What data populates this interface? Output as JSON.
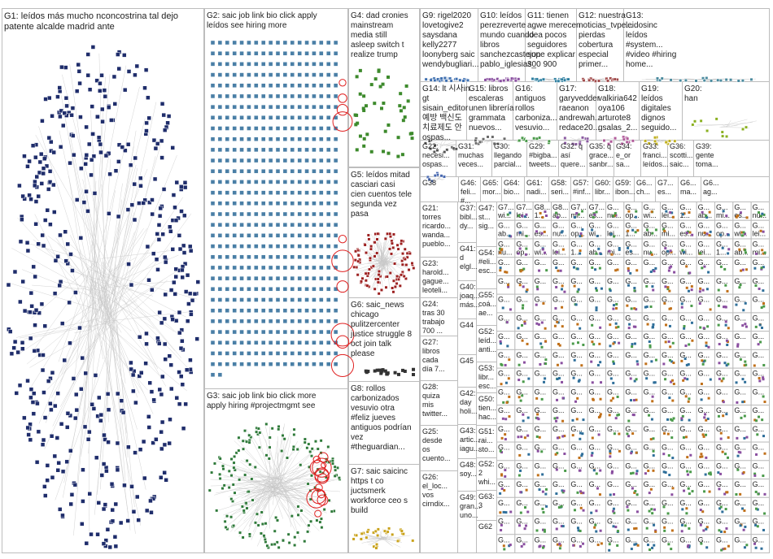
{
  "groups": [
    {
      "id": "G1",
      "lines": [
        "G1: leídos más mucho nconcostrina tal dejo",
        "patente alcalde madrid ante"
      ],
      "color": "#1f2d6b",
      "style": "ellipse",
      "n": 480
    },
    {
      "id": "G2",
      "lines": [
        "G2: saic job link bio click apply",
        "leídos see hiring more"
      ],
      "color": "#4a7fa6",
      "style": "grid",
      "n": 560
    },
    {
      "id": "G3",
      "lines": [
        "G3: saic job link bio click more",
        "apply hiring #projectmgmt see"
      ],
      "color": "#2f7a3a",
      "style": "ellipse",
      "n": 170
    },
    {
      "id": "G4",
      "lines": [
        "G4: dad cronies",
        "mainstream",
        "media still",
        "asleep switch t",
        "realize trump"
      ],
      "color": "#3d8a2c",
      "style": "scatter",
      "n": 45
    },
    {
      "id": "G5",
      "lines": [
        "G5: leídos mitad",
        "casciari casi",
        "cien cuentos tele",
        "segunda vez",
        "pasa"
      ],
      "color": "#9c2020",
      "style": "ellipse",
      "n": 110
    },
    {
      "id": "G6",
      "lines": [
        "G6: saic_news",
        "chicago",
        "pulitzercenter",
        "justice struggle 8",
        "oct join talk",
        "please"
      ],
      "color": "#333333",
      "style": "scatter",
      "n": 20
    },
    {
      "id": "G7",
      "lines": [
        "G7: saic saicinc",
        "https t co",
        "juctsmerk",
        "workforce ceo s",
        "build"
      ],
      "color": "#c9a21a",
      "style": "ellipse",
      "n": 30
    },
    {
      "id": "G8",
      "lines": [
        "G8: rollos",
        "carbonizados",
        "vesuvio otra",
        "#feliz jueves",
        "antiguos podrían",
        "vez",
        "#theguardian..."
      ],
      "color": "#777777",
      "style": "none",
      "n": 0
    },
    {
      "id": "G9",
      "lines": [
        "G9: rigel2020",
        "lovetogive2",
        "saysdana",
        "kelly2277",
        "loonyberg saic",
        "wendybugliari..."
      ],
      "color": "#3e6fb0",
      "style": "ellipse",
      "n": 25
    },
    {
      "id": "G10",
      "lines": [
        "G10: leídos",
        "perezreverte",
        "mundo cuando",
        "libros",
        "sanchezcastejon",
        "pablo_iglesias_"
      ],
      "color": "#8a4fa0",
      "style": "ellipse",
      "n": 25
    },
    {
      "id": "G11",
      "lines": [
        "G11: tienen",
        "agwe merecen",
        "idea pocos",
        "seguidores",
        "supe explicar",
        "300 900"
      ],
      "color": "#2e7fa0",
      "style": "ellipse",
      "n": 25
    },
    {
      "id": "G12",
      "lines": [
        "G12: nuestra",
        "noticias_tvpe...",
        "pierdas",
        "cobertura",
        "especial",
        "primer..."
      ],
      "color": "#a04a4a",
      "style": "ellipse",
      "n": 20
    },
    {
      "id": "G13",
      "lines": [
        "G13:",
        "leidosinc",
        "leídos",
        "#system...",
        "#video #hiring",
        "home..."
      ],
      "color": "#4a8a9e",
      "style": "ellipse",
      "n": 20
    },
    {
      "id": "G14",
      "lines": [
        "G14: lt 시사in",
        "gt",
        "sisain_editor",
        "예방 백신도",
        "치료제도 안",
        "ospas..."
      ],
      "color": "#555555",
      "style": "ellipse",
      "n": 12
    },
    {
      "id": "G15",
      "lines": [
        "G15: libros",
        "escaleras",
        "unen librería",
        "grammata",
        "nuevos..."
      ],
      "color": "#6a6a6a",
      "style": "ellipse",
      "n": 12
    },
    {
      "id": "G16",
      "lines": [
        "G16:",
        "antiguos",
        "rollos",
        "carboniza...",
        "vesuvio..."
      ],
      "color": "#4a9a4a",
      "style": "ellipse",
      "n": 12
    },
    {
      "id": "G17",
      "lines": [
        "G17:",
        "garyvedder",
        "raeanon",
        "andrewah...",
        "redace20..."
      ],
      "color": "#8a5aa0",
      "style": "ellipse",
      "n": 12
    },
    {
      "id": "G18",
      "lines": [
        "G18:",
        "valkiria642",
        "oya106",
        "arturote8",
        "gsalas_2..."
      ],
      "color": "#b05a9a",
      "style": "ellipse",
      "n": 12
    },
    {
      "id": "G19",
      "lines": [
        "G19:",
        "leídos",
        "digitales",
        "dignos",
        "seguido..."
      ],
      "color": "#c0b020",
      "style": "ellipse",
      "n": 12
    },
    {
      "id": "G20",
      "lines": [
        "G20:",
        "han"
      ],
      "color": "#8ab020",
      "style": "ellipse",
      "n": 10
    },
    {
      "id": "G22",
      "lines": [
        "G22:",
        "necesi...",
        "ospas..."
      ],
      "color": "#4a6ab0",
      "style": "ellipse",
      "n": 8
    },
    {
      "id": "G31",
      "lines": [
        "G31:",
        "muchas",
        "veces..."
      ],
      "color": "#4a6ab0",
      "style": "none",
      "n": 0
    },
    {
      "id": "G30",
      "lines": [
        "G30:",
        "llegando",
        "parcial..."
      ],
      "color": "#4a6ab0",
      "style": "none",
      "n": 0
    },
    {
      "id": "G29",
      "lines": [
        "G29:",
        "#bigba...",
        "tweets..."
      ],
      "color": "#4a6ab0",
      "style": "none",
      "n": 0
    },
    {
      "id": "G32",
      "lines": [
        "G32: q",
        "así",
        "quere..."
      ],
      "color": "#4a6ab0",
      "style": "none",
      "n": 0
    },
    {
      "id": "G35",
      "lines": [
        "G35: q",
        "grace...",
        "sanbr..."
      ],
      "color": "#4a6ab0",
      "style": "none",
      "n": 0
    },
    {
      "id": "G34",
      "lines": [
        "G34:",
        "e_or",
        "sa..."
      ],
      "color": "#4a6ab0",
      "style": "none",
      "n": 0
    },
    {
      "id": "G33",
      "lines": [
        "G33:",
        "franci...",
        "leídos..."
      ],
      "color": "#4a6ab0",
      "style": "none",
      "n": 0
    },
    {
      "id": "G36",
      "lines": [
        "G36:",
        "scotti...",
        "saic..."
      ],
      "color": "#4a6ab0",
      "style": "none",
      "n": 0
    },
    {
      "id": "G39",
      "lines": [
        "G39:",
        "gente",
        "toma..."
      ],
      "color": "#4a6ab0",
      "style": "none",
      "n": 0
    },
    {
      "id": "G38",
      "lines": [
        "G38"
      ],
      "color": "#4a6ab0",
      "style": "none",
      "n": 0
    },
    {
      "id": "G46",
      "lines": [
        "G46:",
        "feli...",
        "#..."
      ],
      "color": "#4a6ab0",
      "style": "none",
      "n": 0
    },
    {
      "id": "G65",
      "lines": [
        "G65:",
        "mor..."
      ],
      "color": "#4a6ab0",
      "style": "none",
      "n": 0
    },
    {
      "id": "G64",
      "lines": [
        "G64:",
        "bio..."
      ],
      "color": "#4a6ab0",
      "style": "none",
      "n": 0
    },
    {
      "id": "G61",
      "lines": [
        "G61:",
        "nadi..."
      ],
      "color": "#4a6ab0",
      "style": "none",
      "n": 0
    },
    {
      "id": "G58",
      "lines": [
        "G58:",
        "seri..."
      ],
      "color": "#4a6ab0",
      "style": "none",
      "n": 0
    },
    {
      "id": "G57",
      "lines": [
        "G57:",
        "#inf..."
      ],
      "color": "#4a6ab0",
      "style": "none",
      "n": 0
    },
    {
      "id": "G60",
      "lines": [
        "G60:",
        "libr..."
      ],
      "color": "#4a6ab0",
      "style": "none",
      "n": 0
    },
    {
      "id": "G59",
      "lines": [
        "G59:",
        "ibon..."
      ],
      "color": "#4a6ab0",
      "style": "none",
      "n": 0
    },
    {
      "id": "G56",
      "lines": [
        "G6...",
        "ch..."
      ],
      "color": "#4a6ab0",
      "style": "none",
      "n": 0
    },
    {
      "id": "G7x",
      "lines": [
        "G7...",
        "es..."
      ],
      "color": "#4a6ab0",
      "style": "none",
      "n": 0
    },
    {
      "id": "G6y",
      "lines": [
        "G6...",
        "ma..."
      ],
      "color": "#4a6ab0",
      "style": "none",
      "n": 0
    },
    {
      "id": "G6z",
      "lines": [
        "G6...",
        "ag..."
      ],
      "color": "#4a6ab0",
      "style": "none",
      "n": 0
    },
    {
      "id": "G21",
      "lines": [
        "G21:",
        "torres",
        "ricardo...",
        "wanda...",
        "pueblo..."
      ],
      "color": "#4a6ab0",
      "style": "none",
      "n": 0
    },
    {
      "id": "G37",
      "lines": [
        "G37:",
        "bibl...",
        "dy..."
      ],
      "color": "#4a6ab0",
      "style": "none",
      "n": 0
    },
    {
      "id": "G47",
      "lines": [
        "G47:",
        "st...",
        "sig..."
      ],
      "color": "#4a6ab0",
      "style": "none",
      "n": 0
    },
    {
      "id": "G23",
      "lines": [
        "G23:",
        "harold...",
        "gague...",
        "leoteli..."
      ],
      "color": "#4a6ab0",
      "style": "none",
      "n": 0
    },
    {
      "id": "G41",
      "lines": [
        "G41:",
        "d",
        "elgl..."
      ],
      "color": "#4a6ab0",
      "style": "none",
      "n": 0
    },
    {
      "id": "G54",
      "lines": [
        "G54:",
        "#eli...",
        "esc..."
      ],
      "color": "#4a6ab0",
      "style": "none",
      "n": 0
    },
    {
      "id": "G24",
      "lines": [
        "G24:",
        "tras 30",
        "trabajo",
        "700 ..."
      ],
      "color": "#4a6ab0",
      "style": "none",
      "n": 0
    },
    {
      "id": "G40",
      "lines": [
        "G40:",
        "joaq...",
        "más..."
      ],
      "color": "#4a6ab0",
      "style": "none",
      "n": 0
    },
    {
      "id": "G55",
      "lines": [
        "G55:",
        "coá...",
        "ae..."
      ],
      "color": "#4a6ab0",
      "style": "none",
      "n": 0
    },
    {
      "id": "G52",
      "lines": [
        "G52:",
        "leíd...",
        "anti..."
      ],
      "color": "#4a6ab0",
      "style": "none",
      "n": 0
    },
    {
      "id": "G44",
      "lines": [
        "G44"
      ],
      "color": "#4a6ab0",
      "style": "none",
      "n": 0
    },
    {
      "id": "G27",
      "lines": [
        "G27:",
        "libros",
        "cada",
        "día 7..."
      ],
      "color": "#4a6ab0",
      "style": "none",
      "n": 0
    },
    {
      "id": "G53",
      "lines": [
        "G53:",
        "libr...",
        "esc..."
      ],
      "color": "#4a6ab0",
      "style": "none",
      "n": 0
    },
    {
      "id": "G45",
      "lines": [
        "G45"
      ],
      "color": "#4a6ab0",
      "style": "none",
      "n": 0
    },
    {
      "id": "G50",
      "lines": [
        "G50:",
        "tien...",
        "hac..."
      ],
      "color": "#4a6ab0",
      "style": "none",
      "n": 0
    },
    {
      "id": "G28",
      "lines": [
        "G28:",
        "quiza",
        "mis",
        "twitter..."
      ],
      "color": "#4a6ab0",
      "style": "none",
      "n": 0
    },
    {
      "id": "G42",
      "lines": [
        "G42:",
        "day",
        "holi..."
      ],
      "color": "#4a6ab0",
      "style": "none",
      "n": 0
    },
    {
      "id": "G51",
      "lines": [
        "G51:",
        "rai...",
        "sto..."
      ],
      "color": "#4a6ab0",
      "style": "none",
      "n": 0
    },
    {
      "id": "G25",
      "lines": [
        "G25:",
        "desde",
        "os",
        "cuento..."
      ],
      "color": "#4a6ab0",
      "style": "none",
      "n": 0
    },
    {
      "id": "G43",
      "lines": [
        "G43:",
        "artic...",
        "iagu..."
      ],
      "color": "#4a6ab0",
      "style": "none",
      "n": 0
    },
    {
      "id": "G52b",
      "lines": [
        "G52:",
        "2",
        "whi..."
      ],
      "color": "#4a6ab0",
      "style": "none",
      "n": 0
    },
    {
      "id": "G48",
      "lines": [
        "G48:",
        "soy..."
      ],
      "color": "#4a6ab0",
      "style": "none",
      "n": 0
    },
    {
      "id": "G63",
      "lines": [
        "G63:",
        "3"
      ],
      "color": "#4a6ab0",
      "style": "none",
      "n": 0
    },
    {
      "id": "G26",
      "lines": [
        "G26:",
        "el_loc...",
        "vos",
        "cirndix..."
      ],
      "color": "#4a6ab0",
      "style": "none",
      "n": 0
    },
    {
      "id": "G49",
      "lines": [
        "G49:",
        "gran...",
        "uno..."
      ],
      "color": "#4a6ab0",
      "style": "none",
      "n": 0
    },
    {
      "id": "G62",
      "lines": [
        "G62"
      ],
      "color": "#4a6ab0",
      "style": "none",
      "n": 0
    }
  ],
  "tiny_label": "G...",
  "tiny_row_labels": [
    "G7...",
    "G7...",
    "G8...",
    "G8...",
    "G7...",
    "G7...",
    "G...",
    "G...",
    "G...",
    "G...",
    "G...",
    "G...",
    "G..."
  ],
  "tiny_row_words": [
    "wi...",
    "lei...",
    "1...",
    "ab...",
    "mi...",
    "es...",
    "nu...",
    "op..."
  ]
}
